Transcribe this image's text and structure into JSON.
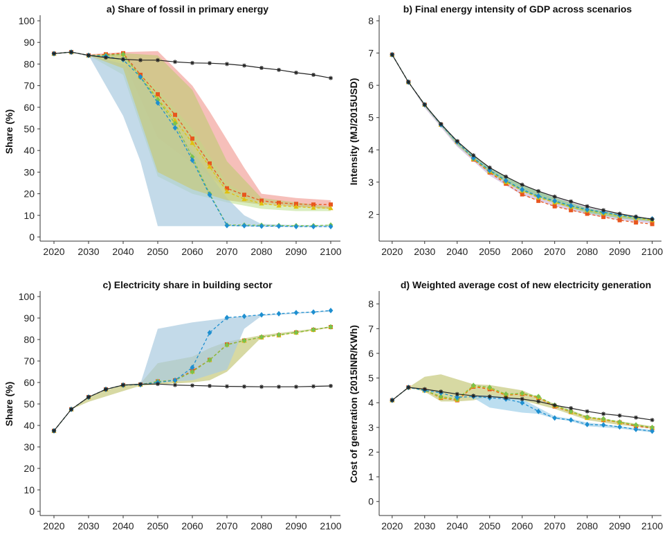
{
  "chart_data": [
    {
      "type": "line",
      "title": "a) Share of fossil in primary energy",
      "ylabel": "Share (%)",
      "xlabel": "",
      "x": [
        2020,
        2025,
        2030,
        2035,
        2040,
        2045,
        2050,
        2055,
        2060,
        2065,
        2070,
        2075,
        2080,
        2085,
        2090,
        2095,
        2100
      ],
      "xlim": [
        2016,
        2102
      ],
      "ylim": [
        0,
        100
      ],
      "xticks": [
        2020,
        2030,
        2040,
        2050,
        2060,
        2070,
        2080,
        2090,
        2100
      ],
      "yticks": [
        0,
        10,
        20,
        30,
        40,
        50,
        60,
        70,
        80,
        90,
        100
      ],
      "series": [
        {
          "color": "#222222",
          "dashed": false,
          "marker": "star",
          "values": [
            84.8,
            85.5,
            84,
            83,
            82.2,
            81.8,
            81.8,
            81,
            80.5,
            80.4,
            80,
            79.3,
            78.2,
            77.3,
            76,
            75,
            73.5
          ]
        },
        {
          "color": "#e8561e",
          "dashed": true,
          "marker": "square",
          "values": [
            84.8,
            85.5,
            84,
            84.5,
            85,
            75,
            66,
            56.5,
            45.5,
            34,
            22.5,
            19.5,
            16.8,
            15.8,
            15.3,
            15,
            15
          ]
        },
        {
          "color": "#e0c010",
          "dashed": true,
          "marker": "triangle",
          "values": [
            84.8,
            85.5,
            84,
            84,
            84.5,
            74,
            64,
            54,
            43.5,
            32.5,
            21,
            17.5,
            15.5,
            14.5,
            14,
            13.5,
            13.3
          ]
        },
        {
          "color": "#7cc24a",
          "dashed": true,
          "marker": "diamond",
          "values": [
            84.8,
            85.5,
            84,
            84,
            84.5,
            74,
            63.5,
            52.5,
            37,
            20,
            5.5,
            5.5,
            5.4,
            5.3,
            5.2,
            5.2,
            5.5
          ]
        },
        {
          "color": "#1e8fd0",
          "dashed": true,
          "marker": "diamond",
          "values": [
            84.8,
            85.5,
            84,
            83.5,
            82,
            74,
            62,
            50.5,
            35.5,
            19.5,
            5.3,
            5.2,
            5.0,
            5.0,
            4.8,
            4.8,
            4.8
          ]
        }
      ],
      "bands": [
        {
          "color": "#f2a49c",
          "x": [
            2030,
            2040,
            2050,
            2060,
            2065,
            2070,
            2075,
            2080,
            2090,
            2100
          ],
          "upper": [
            84.5,
            85.5,
            86,
            70,
            58,
            45,
            32,
            20,
            18,
            17
          ],
          "lower": [
            84,
            82,
            46,
            34,
            28,
            22,
            18,
            16,
            14,
            13
          ]
        },
        {
          "color": "#c9e6a4",
          "x": [
            2030,
            2040,
            2050,
            2060,
            2070,
            2080,
            2090,
            2100
          ],
          "upper": [
            84,
            84,
            68,
            50,
            25,
            15,
            14,
            13
          ],
          "lower": [
            84,
            75,
            28,
            20,
            16,
            13,
            12,
            12
          ]
        },
        {
          "color": "#a9cbe0",
          "x": [
            2030,
            2040,
            2045,
            2050,
            2060,
            2070,
            2075,
            2080,
            2090,
            2100
          ],
          "upper": [
            84,
            80,
            74,
            62,
            40,
            18,
            10,
            6,
            5.5,
            5.5
          ],
          "lower": [
            84,
            56,
            35,
            5,
            5,
            5,
            4.8,
            4.7,
            4.6,
            4.6
          ]
        },
        {
          "color": "#c6c97c",
          "x": [
            2030,
            2040,
            2050,
            2060,
            2070,
            2080,
            2090,
            2100
          ],
          "upper": [
            84,
            85,
            84,
            68,
            35,
            18,
            16,
            14
          ],
          "lower": [
            84,
            78,
            30,
            22,
            17,
            15,
            14,
            13
          ]
        }
      ]
    },
    {
      "type": "line",
      "title": "b) Final energy intensity of GDP across scenarios",
      "ylabel": "Intensity (MJ/2015USD)",
      "xlabel": "",
      "x": [
        2020,
        2025,
        2030,
        2035,
        2040,
        2045,
        2050,
        2055,
        2060,
        2065,
        2070,
        2075,
        2080,
        2085,
        2090,
        2095,
        2100
      ],
      "xlim": [
        2016,
        2102
      ],
      "ylim": [
        1.3,
        8
      ],
      "xticks": [
        2020,
        2030,
        2040,
        2050,
        2060,
        2070,
        2080,
        2090,
        2100
      ],
      "yticks": [
        2,
        3,
        4,
        5,
        6,
        7,
        8
      ],
      "series": [
        {
          "color": "#222222",
          "dashed": false,
          "marker": "star",
          "values": [
            6.95,
            6.1,
            5.4,
            4.8,
            4.27,
            3.83,
            3.45,
            3.17,
            2.92,
            2.72,
            2.55,
            2.4,
            2.25,
            2.13,
            2.02,
            1.93,
            1.85
          ]
        },
        {
          "color": "#e8561e",
          "dashed": true,
          "marker": "square",
          "values": [
            6.95,
            6.1,
            5.4,
            4.78,
            4.25,
            3.7,
            3.3,
            2.95,
            2.62,
            2.42,
            2.25,
            2.13,
            2.02,
            1.92,
            1.82,
            1.75,
            1.7
          ]
        },
        {
          "color": "#e0c010",
          "dashed": true,
          "marker": "triangle",
          "values": [
            6.95,
            6.1,
            5.4,
            4.78,
            4.25,
            3.72,
            3.33,
            3.0,
            2.73,
            2.52,
            2.37,
            2.23,
            2.12,
            2.03,
            1.95,
            1.88,
            1.82
          ]
        },
        {
          "color": "#7cc24a",
          "dashed": true,
          "marker": "diamond",
          "values": [
            6.95,
            6.1,
            5.4,
            4.78,
            4.25,
            3.73,
            3.35,
            3.03,
            2.75,
            2.55,
            2.4,
            2.25,
            2.13,
            2.05,
            1.97,
            1.9,
            1.85
          ]
        },
        {
          "color": "#1e8fd0",
          "dashed": true,
          "marker": "diamond",
          "values": [
            6.95,
            6.1,
            5.4,
            4.78,
            4.25,
            3.75,
            3.37,
            3.05,
            2.77,
            2.57,
            2.42,
            2.27,
            2.15,
            2.07,
            1.98,
            1.91,
            1.86
          ]
        }
      ],
      "bands": [
        {
          "color": "#cdb8d8",
          "x": [
            2025,
            2030,
            2040,
            2050,
            2060,
            2070,
            2080,
            2090,
            2100
          ],
          "upper": [
            6.1,
            5.4,
            4.27,
            3.45,
            2.92,
            2.55,
            2.25,
            2.02,
            1.85
          ],
          "lower": [
            6.1,
            5.3,
            4.1,
            3.2,
            2.6,
            2.25,
            2.0,
            1.82,
            1.72
          ]
        },
        {
          "color": "#8ccc8c",
          "x": [
            2025,
            2030,
            2040,
            2050,
            2060,
            2070,
            2080,
            2090,
            2100
          ],
          "upper": [
            6.1,
            5.4,
            4.27,
            3.45,
            2.9,
            2.52,
            2.2,
            2.0,
            1.85
          ],
          "lower": [
            6.1,
            5.35,
            4.15,
            3.28,
            2.72,
            2.35,
            2.05,
            1.88,
            1.78
          ]
        }
      ]
    },
    {
      "type": "line",
      "title": "c) Electricity share in building sector",
      "ylabel": "Share (%)",
      "xlabel": "",
      "x": [
        2020,
        2025,
        2030,
        2035,
        2040,
        2045,
        2050,
        2055,
        2060,
        2065,
        2070,
        2075,
        2080,
        2085,
        2090,
        2095,
        2100
      ],
      "xlim": [
        2016,
        2102
      ],
      "ylim": [
        0,
        100
      ],
      "xticks": [
        2020,
        2030,
        2040,
        2050,
        2060,
        2070,
        2080,
        2090,
        2100
      ],
      "yticks": [
        0,
        10,
        20,
        30,
        40,
        50,
        60,
        70,
        80,
        90,
        100
      ],
      "series": [
        {
          "color": "#222222",
          "dashed": false,
          "marker": "star",
          "values": [
            37.5,
            47.5,
            53.2,
            56.8,
            58.8,
            59.2,
            59.3,
            58.8,
            58.6,
            58.4,
            58.2,
            58.1,
            58,
            58,
            58,
            58.2,
            58.4
          ]
        },
        {
          "color": "#e8561e",
          "dashed": true,
          "marker": "square",
          "values": [
            37.5,
            47.5,
            53.2,
            56.8,
            58.8,
            59,
            60.5,
            61,
            65.5,
            70.5,
            77.7,
            79.5,
            81,
            82,
            83.3,
            84.5,
            85.8
          ]
        },
        {
          "color": "#e0c010",
          "dashed": true,
          "marker": "triangle",
          "values": [
            37.5,
            47.5,
            53.2,
            56.8,
            58.8,
            59,
            60.5,
            61,
            65,
            70.5,
            77.5,
            79.5,
            81,
            82,
            83.2,
            84.5,
            86
          ]
        },
        {
          "color": "#7cc24a",
          "dashed": true,
          "marker": "diamond",
          "values": [
            37.5,
            47.5,
            53.2,
            56.8,
            58.8,
            59,
            60.5,
            61,
            65,
            70.5,
            77.5,
            79.5,
            81.2,
            82.2,
            83.3,
            84.6,
            85.9
          ]
        },
        {
          "color": "#1e8fd0",
          "dashed": true,
          "marker": "diamond",
          "values": [
            37.5,
            47.5,
            53.2,
            56.8,
            58.8,
            59,
            60,
            61,
            67,
            83.2,
            90.2,
            90.8,
            91.5,
            92,
            92.5,
            92.8,
            93.5
          ]
        }
      ],
      "bands": [
        {
          "color": "#c6c97c",
          "x": [
            2025,
            2030,
            2040,
            2045,
            2050,
            2060,
            2065,
            2070,
            2080,
            2090,
            2100
          ],
          "upper": [
            47.5,
            53.5,
            59,
            59.5,
            69,
            72,
            76,
            79,
            82,
            84,
            86
          ],
          "lower": [
            47.5,
            51,
            56,
            58.5,
            59,
            60,
            61,
            65,
            81,
            83,
            85.5
          ]
        },
        {
          "color": "#a9cbe0",
          "x": [
            2045,
            2050,
            2060,
            2070,
            2075,
            2080,
            2090,
            2100
          ],
          "upper": [
            59.5,
            85,
            88,
            90,
            91,
            91.5,
            92.5,
            93.5
          ],
          "lower": [
            59,
            60,
            61,
            66,
            85,
            91,
            92,
            93
          ]
        }
      ]
    },
    {
      "type": "line",
      "title": "d) Weighted average cost of new electricity generation",
      "ylabel": "Cost of generation (2015INR/KWh)",
      "xlabel": "",
      "x": [
        2020,
        2025,
        2030,
        2035,
        2040,
        2045,
        2050,
        2055,
        2060,
        2065,
        2070,
        2075,
        2080,
        2085,
        2090,
        2095,
        2100
      ],
      "xlim": [
        2016,
        2102
      ],
      "ylim": [
        -0.4,
        8.3
      ],
      "xticks": [
        2020,
        2030,
        2040,
        2050,
        2060,
        2070,
        2080,
        2090,
        2100
      ],
      "yticks": [
        0,
        1,
        2,
        3,
        4,
        5,
        6,
        7,
        8
      ],
      "series": [
        {
          "color": "#222222",
          "dashed": false,
          "marker": "star",
          "values": [
            4.1,
            4.62,
            4.55,
            4.45,
            4.35,
            4.28,
            4.25,
            4.2,
            4.15,
            4.05,
            3.9,
            3.78,
            3.65,
            3.55,
            3.48,
            3.4,
            3.3
          ]
        },
        {
          "color": "#e8561e",
          "dashed": true,
          "marker": "square",
          "values": [
            4.1,
            4.62,
            4.5,
            4.2,
            4.1,
            4.65,
            4.55,
            4.3,
            4.35,
            4.2,
            3.85,
            3.62,
            3.4,
            3.3,
            3.2,
            3.05,
            2.97
          ]
        },
        {
          "color": "#e0c010",
          "dashed": true,
          "marker": "triangle",
          "values": [
            4.1,
            4.62,
            4.5,
            4.22,
            4.12,
            4.68,
            4.6,
            4.32,
            4.38,
            4.22,
            3.88,
            3.62,
            3.38,
            3.32,
            3.2,
            3.1,
            3.0
          ]
        },
        {
          "color": "#7cc24a",
          "dashed": true,
          "marker": "diamond",
          "values": [
            4.1,
            4.62,
            4.5,
            4.25,
            4.15,
            4.7,
            4.62,
            4.35,
            4.38,
            4.25,
            3.9,
            3.65,
            3.42,
            3.35,
            3.22,
            3.1,
            3.0
          ]
        },
        {
          "color": "#1e8fd0",
          "dashed": true,
          "marker": "diamond",
          "values": [
            4.1,
            4.62,
            4.5,
            4.4,
            4.22,
            4.25,
            4.2,
            4.15,
            4.0,
            3.65,
            3.38,
            3.3,
            3.12,
            3.1,
            3.02,
            2.92,
            2.85
          ]
        }
      ],
      "bands": [
        {
          "color": "#c6c97c",
          "x": [
            2025,
            2030,
            2035,
            2040,
            2045,
            2050,
            2060,
            2070,
            2080,
            2090,
            2100
          ],
          "upper": [
            4.62,
            5.05,
            5.15,
            4.95,
            4.75,
            4.72,
            4.5,
            3.95,
            3.45,
            3.25,
            3.05
          ],
          "lower": [
            4.62,
            4.45,
            4.05,
            4.05,
            4.1,
            4.25,
            4.1,
            3.75,
            3.3,
            3.1,
            2.95
          ]
        },
        {
          "color": "#9fd0ea",
          "x": [
            2045,
            2050,
            2060,
            2065,
            2070,
            2075,
            2080,
            2090,
            2100
          ],
          "upper": [
            4.3,
            4.3,
            4.15,
            3.8,
            3.45,
            3.35,
            3.2,
            3.05,
            2.9
          ],
          "lower": [
            4.2,
            3.8,
            3.6,
            3.55,
            3.35,
            3.25,
            3.05,
            2.95,
            2.8
          ]
        }
      ]
    }
  ]
}
